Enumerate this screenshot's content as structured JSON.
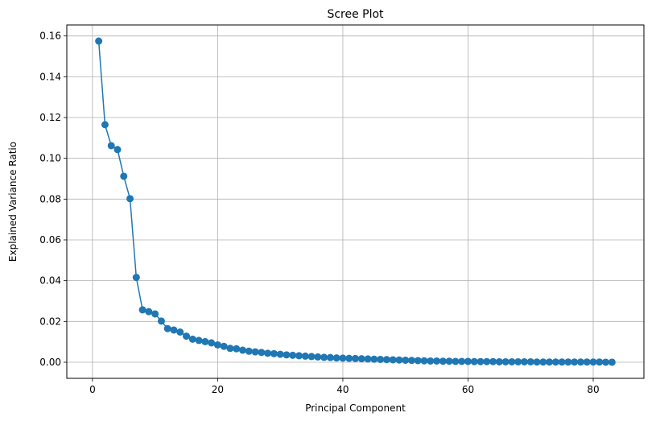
{
  "chart_data": {
    "type": "line",
    "title": "Scree Plot",
    "xlabel": "Principal Component",
    "ylabel": "Explained Variance Ratio",
    "xlim": [
      -4.1,
      88.1
    ],
    "ylim": [
      -0.0079,
      0.1654
    ],
    "xticks": [
      0,
      20,
      40,
      60,
      80
    ],
    "yticks": [
      0.0,
      0.02,
      0.04,
      0.06,
      0.08,
      0.1,
      0.12,
      0.14,
      0.16
    ],
    "ytick_labels": [
      "0.00",
      "0.02",
      "0.04",
      "0.06",
      "0.08",
      "0.10",
      "0.12",
      "0.14",
      "0.16"
    ],
    "grid": true,
    "marker": "circle",
    "color": "#1f77b4",
    "series": [
      {
        "x": [
          1,
          2,
          3,
          4,
          5,
          6,
          7,
          8,
          9,
          10,
          11,
          12,
          13,
          14,
          15,
          16,
          17,
          18,
          19,
          20,
          21,
          22,
          23,
          24,
          25,
          26,
          27,
          28,
          29,
          30,
          31,
          32,
          33,
          34,
          35,
          36,
          37,
          38,
          39,
          40,
          41,
          42,
          43,
          44,
          45,
          46,
          47,
          48,
          49,
          50,
          51,
          52,
          53,
          54,
          55,
          56,
          57,
          58,
          59,
          60,
          61,
          62,
          63,
          64,
          65,
          66,
          67,
          68,
          69,
          70,
          71,
          72,
          73,
          74,
          75,
          76,
          77,
          78,
          79,
          80,
          81,
          82,
          83
        ],
        "values": [
          0.1575,
          0.1165,
          0.1062,
          0.1043,
          0.0912,
          0.0802,
          0.0416,
          0.0257,
          0.0248,
          0.0237,
          0.0202,
          0.0165,
          0.0158,
          0.0148,
          0.0128,
          0.0113,
          0.0107,
          0.0101,
          0.0095,
          0.0085,
          0.0078,
          0.0068,
          0.0066,
          0.0059,
          0.0054,
          0.0051,
          0.0048,
          0.0044,
          0.0042,
          0.0039,
          0.0036,
          0.0034,
          0.0032,
          0.003,
          0.0028,
          0.0026,
          0.0024,
          0.0023,
          0.0021,
          0.002,
          0.0019,
          0.0018,
          0.0017,
          0.0016,
          0.0015,
          0.0014,
          0.0013,
          0.0012,
          0.0011,
          0.001,
          0.0009,
          0.0008,
          0.0007,
          0.0006,
          0.0006,
          0.0005,
          0.0005,
          0.0004,
          0.0004,
          0.0004,
          0.0003,
          0.0003,
          0.0003,
          0.0003,
          0.0002,
          0.0002,
          0.0002,
          0.0002,
          0.0002,
          0.0002,
          0.0001,
          0.0001,
          0.0001,
          0.0001,
          0.0001,
          0.0001,
          0.0001,
          0.0001,
          0.0001,
          0.0001,
          0.0001,
          0.0,
          0.0
        ]
      }
    ]
  }
}
